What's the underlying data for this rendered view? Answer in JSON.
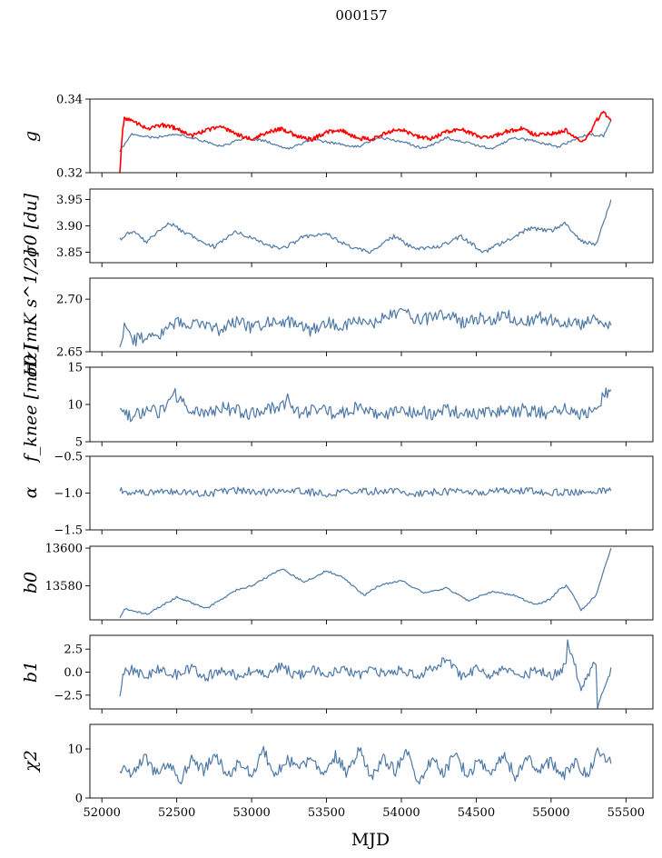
{
  "figure": {
    "title": "000157"
  },
  "colors": {
    "series": "#4e79a7",
    "overlay": "#ff0000",
    "axes": "#000000"
  },
  "chart_data": [
    {
      "type": "line",
      "id": "g",
      "ylabel": "g",
      "ylim": [
        0.32,
        0.34
      ],
      "yticks": [
        0.32,
        0.34
      ],
      "ytick_labels": [
        "0.32",
        "0.34"
      ],
      "series": [
        {
          "name": "g",
          "color": "#4e79a7",
          "x": [
            52120,
            52200,
            52350,
            52500,
            52650,
            52800,
            52950,
            53100,
            53250,
            53400,
            53550,
            53700,
            53850,
            54000,
            54150,
            54300,
            54450,
            54600,
            54750,
            54900,
            55050,
            55150,
            55250,
            55350,
            55400
          ],
          "y": [
            0.326,
            0.3305,
            0.3295,
            0.3305,
            0.329,
            0.327,
            0.3295,
            0.3285,
            0.3265,
            0.329,
            0.328,
            0.327,
            0.3295,
            0.3285,
            0.3265,
            0.3295,
            0.328,
            0.3265,
            0.3295,
            0.3285,
            0.327,
            0.329,
            0.3305,
            0.33,
            0.334
          ]
        },
        {
          "name": "g (overlay)",
          "color": "#ff0000",
          "x": [
            52120,
            52135,
            52150,
            52200,
            52300,
            52400,
            52500,
            52600,
            52700,
            52800,
            52900,
            53000,
            53100,
            53200,
            53300,
            53400,
            53500,
            53600,
            53700,
            53800,
            53900,
            54000,
            54100,
            54200,
            54300,
            54400,
            54500,
            54600,
            54700,
            54800,
            54900,
            55000,
            55100,
            55200,
            55250,
            55300,
            55350,
            55400
          ],
          "y": [
            0.32,
            0.33,
            0.335,
            0.334,
            0.332,
            0.333,
            0.332,
            0.33,
            0.3315,
            0.3325,
            0.3305,
            0.329,
            0.331,
            0.332,
            0.33,
            0.329,
            0.331,
            0.3315,
            0.3295,
            0.329,
            0.331,
            0.3318,
            0.3298,
            0.3292,
            0.331,
            0.3318,
            0.33,
            0.3295,
            0.3312,
            0.332,
            0.3302,
            0.3305,
            0.3315,
            0.3285,
            0.33,
            0.334,
            0.3365,
            0.334
          ]
        }
      ]
    },
    {
      "type": "line",
      "id": "sigma0_du",
      "ylabel": "σ0 [du]",
      "ylim": [
        3.83,
        3.97
      ],
      "yticks": [
        3.85,
        3.9,
        3.95
      ],
      "ytick_labels": [
        "3.85",
        "3.90",
        "3.95"
      ],
      "series": [
        {
          "name": "sigma0_du",
          "color": "#4e79a7",
          "x": [
            52120,
            52200,
            52300,
            52450,
            52600,
            52750,
            52900,
            53050,
            53200,
            53350,
            53500,
            53650,
            53800,
            53950,
            54100,
            54250,
            54400,
            54550,
            54700,
            54850,
            55000,
            55100,
            55200,
            55300,
            55400
          ],
          "y": [
            3.875,
            3.89,
            3.87,
            3.905,
            3.88,
            3.86,
            3.89,
            3.87,
            3.855,
            3.88,
            3.885,
            3.86,
            3.85,
            3.88,
            3.855,
            3.86,
            3.88,
            3.85,
            3.87,
            3.895,
            3.89,
            3.905,
            3.87,
            3.865,
            3.95
          ]
        }
      ]
    },
    {
      "type": "line",
      "id": "sigma0_mk",
      "ylabel": "σ0 [mK s^1/2]",
      "ylim": [
        2.65,
        2.72
      ],
      "yticks": [
        2.65,
        2.7
      ],
      "ytick_labels": [
        "2.65",
        "2.70"
      ],
      "series": [
        {
          "name": "sigma0_mk",
          "color": "#4e79a7",
          "x": [
            52120,
            52150,
            52200,
            52300,
            52400,
            52500,
            52600,
            52700,
            52800,
            52900,
            53000,
            53100,
            53200,
            53300,
            53400,
            53500,
            53600,
            53700,
            53800,
            53900,
            54000,
            54100,
            54200,
            54300,
            54400,
            54500,
            54600,
            54700,
            54800,
            54900,
            55000,
            55100,
            55200,
            55300,
            55400
          ],
          "y": [
            2.657,
            2.675,
            2.66,
            2.665,
            2.668,
            2.678,
            2.675,
            2.677,
            2.67,
            2.68,
            2.673,
            2.677,
            2.68,
            2.676,
            2.67,
            2.678,
            2.675,
            2.68,
            2.677,
            2.683,
            2.69,
            2.68,
            2.682,
            2.685,
            2.678,
            2.682,
            2.68,
            2.685,
            2.677,
            2.683,
            2.68,
            2.678,
            2.676,
            2.68,
            2.675
          ]
        }
      ]
    },
    {
      "type": "line",
      "id": "fknee",
      "ylabel": "f_knee [mHz]",
      "ylim": [
        5,
        15
      ],
      "yticks": [
        5,
        10,
        15
      ],
      "ytick_labels": [
        "5",
        "10",
        "15"
      ],
      "series": [
        {
          "name": "fknee",
          "color": "#4e79a7",
          "x": [
            52120,
            52200,
            52300,
            52400,
            52480,
            52600,
            52700,
            52800,
            52900,
            53000,
            53100,
            53200,
            53240,
            53300,
            53400,
            53500,
            53600,
            53700,
            53800,
            53900,
            54000,
            54100,
            54200,
            54300,
            54400,
            54500,
            54600,
            54700,
            54800,
            54900,
            55000,
            55100,
            55200,
            55300,
            55350,
            55400
          ],
          "y": [
            9.0,
            8.5,
            9.2,
            9.0,
            11.5,
            9.0,
            8.8,
            9.5,
            9.2,
            8.8,
            9.3,
            9.5,
            11.0,
            9.0,
            9.2,
            9.0,
            8.8,
            9.5,
            9.0,
            8.7,
            9.2,
            9.0,
            8.8,
            9.3,
            9.0,
            8.5,
            9.2,
            8.8,
            9.3,
            9.0,
            8.7,
            9.5,
            8.5,
            9.0,
            11.5,
            12.0
          ]
        }
      ]
    },
    {
      "type": "line",
      "id": "alpha",
      "ylabel": "α",
      "ylim": [
        -1.5,
        -0.5
      ],
      "yticks": [
        -1.5,
        -1.0,
        -0.5
      ],
      "ytick_labels": [
        "−1.5",
        "−1.0",
        "−0.5"
      ],
      "series": [
        {
          "name": "alpha",
          "color": "#4e79a7",
          "x": [
            52120,
            52300,
            52500,
            52700,
            52900,
            53100,
            53300,
            53500,
            53700,
            53900,
            54100,
            54300,
            54500,
            54700,
            54900,
            55100,
            55300,
            55400
          ],
          "y": [
            -0.97,
            -1.0,
            -0.98,
            -1.01,
            -0.96,
            -0.99,
            -0.97,
            -1.01,
            -0.98,
            -0.97,
            -1.0,
            -0.98,
            -0.99,
            -0.97,
            -0.98,
            -0.99,
            -0.98,
            -0.97
          ]
        }
      ]
    },
    {
      "type": "line",
      "id": "b0",
      "ylabel": "b0",
      "ylim": [
        13562,
        13601
      ],
      "yticks": [
        13580,
        13600
      ],
      "ytick_labels": [
        "13580",
        "13600"
      ],
      "series": [
        {
          "name": "b0",
          "color": "#4e79a7",
          "x": [
            52120,
            52150,
            52300,
            52500,
            52700,
            52900,
            53000,
            53200,
            53350,
            53500,
            53600,
            53750,
            53850,
            54000,
            54150,
            54300,
            54450,
            54600,
            54750,
            54900,
            55000,
            55050,
            55100,
            55150,
            55200,
            55300,
            55400
          ],
          "y": [
            13563,
            13568,
            13565,
            13574,
            13568,
            13578,
            13580,
            13589,
            13582,
            13588,
            13585,
            13575,
            13580,
            13583,
            13576,
            13579,
            13572,
            13577,
            13575,
            13570,
            13573,
            13578,
            13580,
            13575,
            13567,
            13575,
            13600
          ]
        }
      ]
    },
    {
      "type": "line",
      "id": "b1",
      "ylabel": "b1",
      "ylim": [
        -4,
        4
      ],
      "yticks": [
        -2.5,
        0.0,
        2.5
      ],
      "ytick_labels": [
        "−2.5",
        "0.0",
        "2.5"
      ],
      "series": [
        {
          "name": "b1",
          "color": "#4e79a7",
          "x": [
            52120,
            52140,
            52200,
            52300,
            52400,
            52500,
            52600,
            52700,
            52800,
            52900,
            53000,
            53100,
            53200,
            53300,
            53400,
            53500,
            53600,
            53700,
            53800,
            53900,
            54000,
            54100,
            54200,
            54300,
            54400,
            54500,
            54600,
            54700,
            54800,
            54900,
            55000,
            55100,
            55110,
            55200,
            55300,
            55310,
            55400
          ],
          "y": [
            -2.8,
            -0.2,
            0.3,
            -0.5,
            0.5,
            -0.3,
            0.4,
            -0.5,
            0.3,
            -0.4,
            0.2,
            -0.3,
            0.6,
            -0.4,
            0.3,
            -0.2,
            0.5,
            -0.5,
            0.3,
            -0.3,
            0.4,
            -0.4,
            0.3,
            1.5,
            -0.5,
            0.4,
            -0.3,
            0.5,
            -0.6,
            0.3,
            -0.5,
            0.6,
            3.3,
            -1.5,
            1.0,
            -3.5,
            0.5
          ]
        }
      ]
    },
    {
      "type": "line",
      "id": "chi2",
      "ylabel": "χ2",
      "ylim": [
        0,
        15
      ],
      "yticks": [
        0,
        10
      ],
      "ytick_labels": [
        "0",
        "10"
      ],
      "series": [
        {
          "name": "chi2",
          "color": "#4e79a7",
          "x": [
            52120,
            52200,
            52280,
            52360,
            52440,
            52520,
            52600,
            52680,
            52760,
            52840,
            52920,
            53000,
            53080,
            53160,
            53240,
            53320,
            53400,
            53480,
            53560,
            53640,
            53720,
            53800,
            53880,
            53960,
            54040,
            54120,
            54200,
            54280,
            54360,
            54440,
            54520,
            54600,
            54680,
            54760,
            54840,
            54920,
            55000,
            55080,
            55160,
            55240,
            55320,
            55400
          ],
          "y": [
            6.0,
            4.5,
            8.5,
            5.0,
            7.5,
            3.5,
            8.0,
            5.5,
            9.0,
            4.0,
            7.5,
            5.0,
            9.5,
            4.5,
            8.0,
            5.5,
            9.0,
            4.0,
            8.5,
            5.0,
            10.0,
            4.5,
            8.0,
            5.5,
            9.5,
            3.0,
            8.0,
            5.0,
            9.0,
            4.5,
            7.5,
            5.0,
            9.0,
            4.5,
            8.0,
            5.5,
            7.5,
            4.5,
            7.0,
            5.0,
            9.5,
            7.0
          ]
        }
      ]
    }
  ],
  "shared_x": {
    "xlabel": "MJD",
    "xlim": [
      51920,
      55680
    ],
    "xticks": [
      52000,
      52500,
      53000,
      53500,
      54000,
      54500,
      55000,
      55500
    ],
    "xtick_labels": [
      "52000",
      "52500",
      "53000",
      "53500",
      "54000",
      "54500",
      "55000",
      "55500"
    ]
  }
}
